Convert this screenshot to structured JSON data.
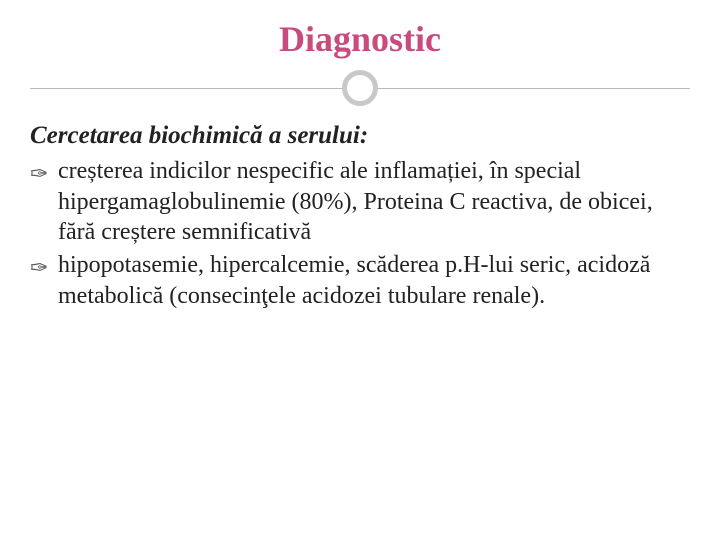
{
  "slide": {
    "title": "Diagnostic",
    "subtitle": "Cercetarea biochimică a serului:",
    "bullets": [
      "creșterea indicilor nespecific ale inflamației, în special hipergamaglobulinemie (80%), Proteina C reactiva, de obicei, fără creștere semnificativă",
      "hipopotasemie, hipercalcemie, scăderea p.H-lui seric, acidoză metabolică (consecinţele acidozei tubulare renale)."
    ],
    "colors": {
      "title": "#c94a7c",
      "text": "#222222",
      "divider": "#c8c8c8",
      "background": "#ffffff"
    },
    "typography": {
      "title_size": 36,
      "subtitle_size": 25,
      "body_size": 24,
      "font_family": "Georgia"
    }
  }
}
